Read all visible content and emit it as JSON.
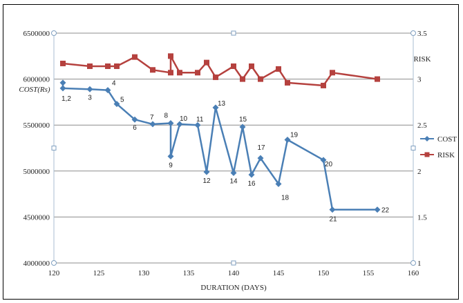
{
  "chart_data": {
    "type": "line",
    "x_axis": {
      "label": "DURATION (DAYS)",
      "min": 120,
      "max": 160,
      "ticks": [
        "120",
        "125",
        "130",
        "135",
        "140",
        "145",
        "150",
        "155",
        "160"
      ]
    },
    "y_axis_left": {
      "label": "COST(Rs)",
      "min": 4000000,
      "max": 6500000,
      "ticks": [
        "4000000",
        "4500000",
        "5000000",
        "5500000",
        "6000000",
        "6500000"
      ]
    },
    "y_axis_right": {
      "label": "RISK",
      "min": 1,
      "max": 3.5,
      "ticks": [
        "1",
        "1.5",
        "2",
        "2.5",
        "3",
        "3.5"
      ]
    },
    "grid": true,
    "legend_position": "right",
    "series": [
      {
        "name": "COST",
        "axis": "left",
        "color": "#4a7fb5",
        "marker": "diamond",
        "points": [
          {
            "x": 121,
            "y": 5960000,
            "label": ""
          },
          {
            "x": 121,
            "y": 5900000,
            "label": "1,2"
          },
          {
            "x": 124,
            "y": 5890000,
            "label": "3"
          },
          {
            "x": 126,
            "y": 5880000,
            "label": "4"
          },
          {
            "x": 127,
            "y": 5730000,
            "label": "5"
          },
          {
            "x": 129,
            "y": 5560000,
            "label": "6"
          },
          {
            "x": 131,
            "y": 5510000,
            "label": "7"
          },
          {
            "x": 133,
            "y": 5520000,
            "label": "8"
          },
          {
            "x": 133,
            "y": 5160000,
            "label": "9"
          },
          {
            "x": 134,
            "y": 5510000,
            "label": "10"
          },
          {
            "x": 136,
            "y": 5500000,
            "label": "11"
          },
          {
            "x": 137,
            "y": 4990000,
            "label": "12"
          },
          {
            "x": 138,
            "y": 5690000,
            "label": "13"
          },
          {
            "x": 140,
            "y": 4980000,
            "label": "14"
          },
          {
            "x": 141,
            "y": 5480000,
            "label": "15"
          },
          {
            "x": 142,
            "y": 4960000,
            "label": "16"
          },
          {
            "x": 143,
            "y": 5140000,
            "label": "17"
          },
          {
            "x": 145,
            "y": 4860000,
            "label": "18"
          },
          {
            "x": 146,
            "y": 5340000,
            "label": "19"
          },
          {
            "x": 150,
            "y": 5120000,
            "label": "20"
          },
          {
            "x": 151,
            "y": 4580000,
            "label": "21"
          },
          {
            "x": 156,
            "y": 4580000,
            "label": "22"
          }
        ]
      },
      {
        "name": "RISK",
        "axis": "right",
        "color": "#b5413e",
        "marker": "square",
        "points": [
          {
            "x": 121,
            "y": 3.17
          },
          {
            "x": 124,
            "y": 3.14
          },
          {
            "x": 126,
            "y": 3.14
          },
          {
            "x": 127,
            "y": 3.14
          },
          {
            "x": 129,
            "y": 3.24
          },
          {
            "x": 131,
            "y": 3.1
          },
          {
            "x": 133,
            "y": 3.07
          },
          {
            "x": 133,
            "y": 3.25
          },
          {
            "x": 134,
            "y": 3.07
          },
          {
            "x": 136,
            "y": 3.07
          },
          {
            "x": 137,
            "y": 3.18
          },
          {
            "x": 138,
            "y": 3.02
          },
          {
            "x": 140,
            "y": 3.14
          },
          {
            "x": 141,
            "y": 3.0
          },
          {
            "x": 142,
            "y": 3.14
          },
          {
            "x": 143,
            "y": 3.0
          },
          {
            "x": 145,
            "y": 3.11
          },
          {
            "x": 146,
            "y": 2.96
          },
          {
            "x": 150,
            "y": 2.93
          },
          {
            "x": 151,
            "y": 3.07
          },
          {
            "x": 156,
            "y": 3.0
          }
        ]
      }
    ]
  }
}
